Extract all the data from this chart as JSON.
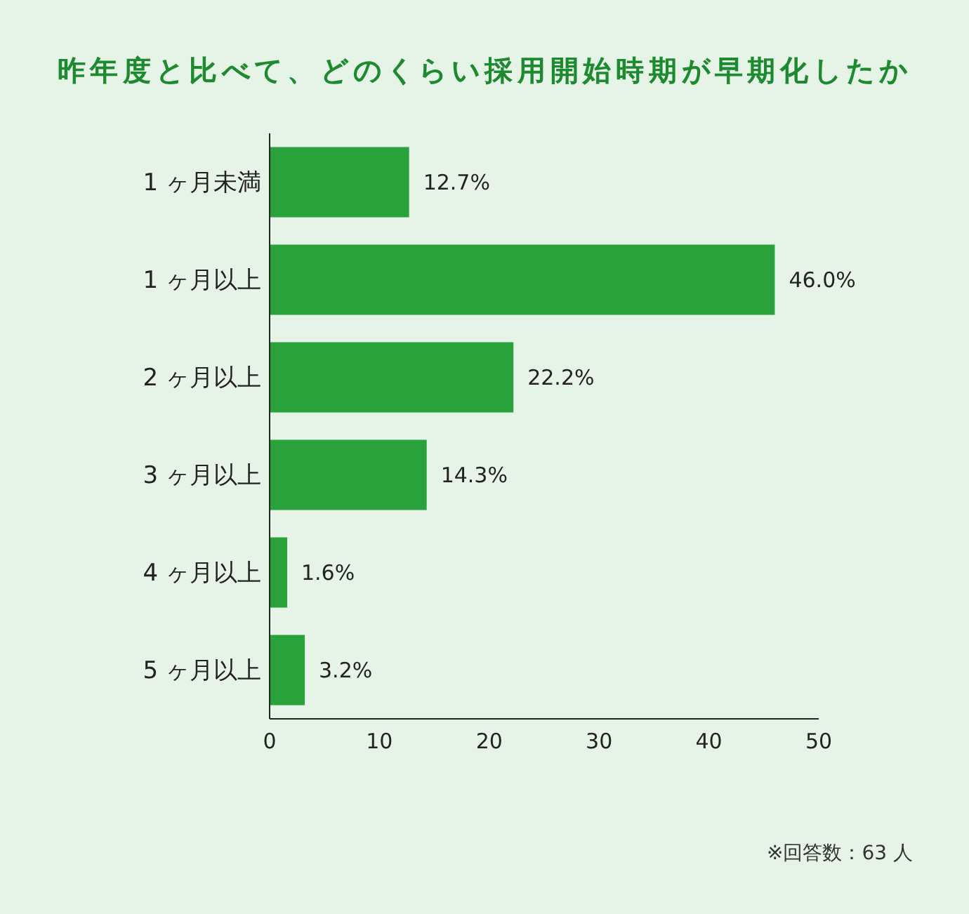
{
  "chart_data": {
    "type": "bar",
    "orientation": "horizontal",
    "title": "昨年度と比べて、どのくらい採用開始時期が早期化したか",
    "categories": [
      "1 ヶ月未満",
      "1 ヶ月以上",
      "2 ヶ月以上",
      "3 ヶ月以上",
      "4 ヶ月以上",
      "5 ヶ月以上"
    ],
    "values": [
      12.7,
      46.0,
      22.2,
      14.3,
      1.6,
      3.2
    ],
    "color": "#29a23c",
    "value_labels": [
      "12.7%",
      "46.0%",
      "22.2%",
      "14.3%",
      "1.6%",
      "3.2%"
    ],
    "xlim": [
      0,
      50
    ],
    "xticks": [
      0,
      10,
      20,
      30,
      40,
      50
    ],
    "annotations": [
      "※回答数：63 人"
    ]
  }
}
